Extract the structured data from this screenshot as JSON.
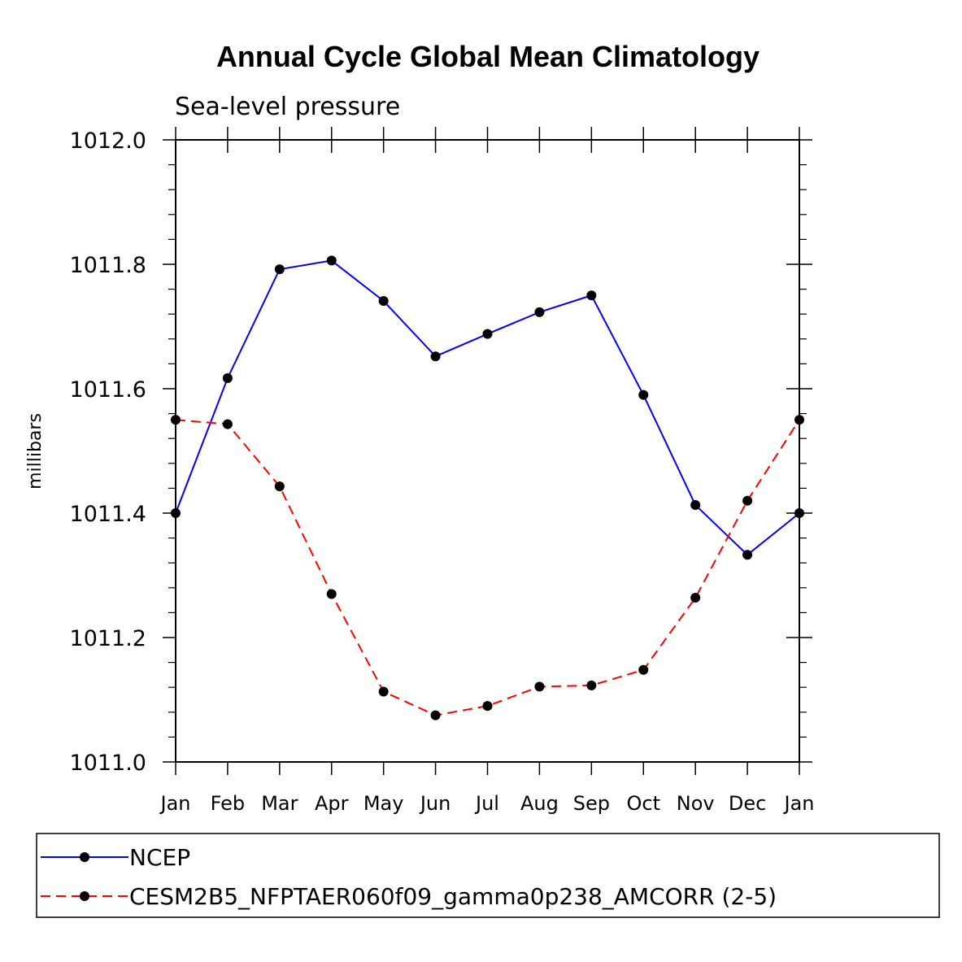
{
  "chart_data": {
    "type": "line",
    "title": "Annual Cycle Global Mean Climatology",
    "subtitle": "Sea-level pressure",
    "xlabel": "",
    "ylabel": "millibars",
    "categories": [
      "Jan",
      "Feb",
      "Mar",
      "Apr",
      "May",
      "Jun",
      "Jul",
      "Aug",
      "Sep",
      "Oct",
      "Nov",
      "Dec",
      "Jan"
    ],
    "ylim": [
      1011.0,
      1012.0
    ],
    "yticks": [
      "1011.0",
      "1011.2",
      "1011.4",
      "1011.6",
      "1011.8",
      "1012.0"
    ],
    "ytick_values": [
      1011.0,
      1011.2,
      1011.4,
      1011.6,
      1011.8,
      1012.0
    ],
    "series": [
      {
        "name": "NCEP",
        "color": "#0000ff",
        "style": "solid",
        "values": [
          1011.4,
          1011.617,
          1011.792,
          1011.806,
          1011.741,
          1011.652,
          1011.688,
          1011.723,
          1011.75,
          1011.59,
          1011.413,
          1011.333,
          1011.4
        ]
      },
      {
        "name": "CESM2B5_NFPTAER060f09_gamma0p238_AMCORR (2-5)",
        "color": "#ff0000",
        "style": "dashed",
        "values": [
          1011.55,
          1011.543,
          1011.443,
          1011.27,
          1011.113,
          1011.075,
          1011.09,
          1011.121,
          1011.123,
          1011.148,
          1011.264,
          1011.42,
          1011.55
        ]
      }
    ],
    "legend_position": "bottom"
  }
}
